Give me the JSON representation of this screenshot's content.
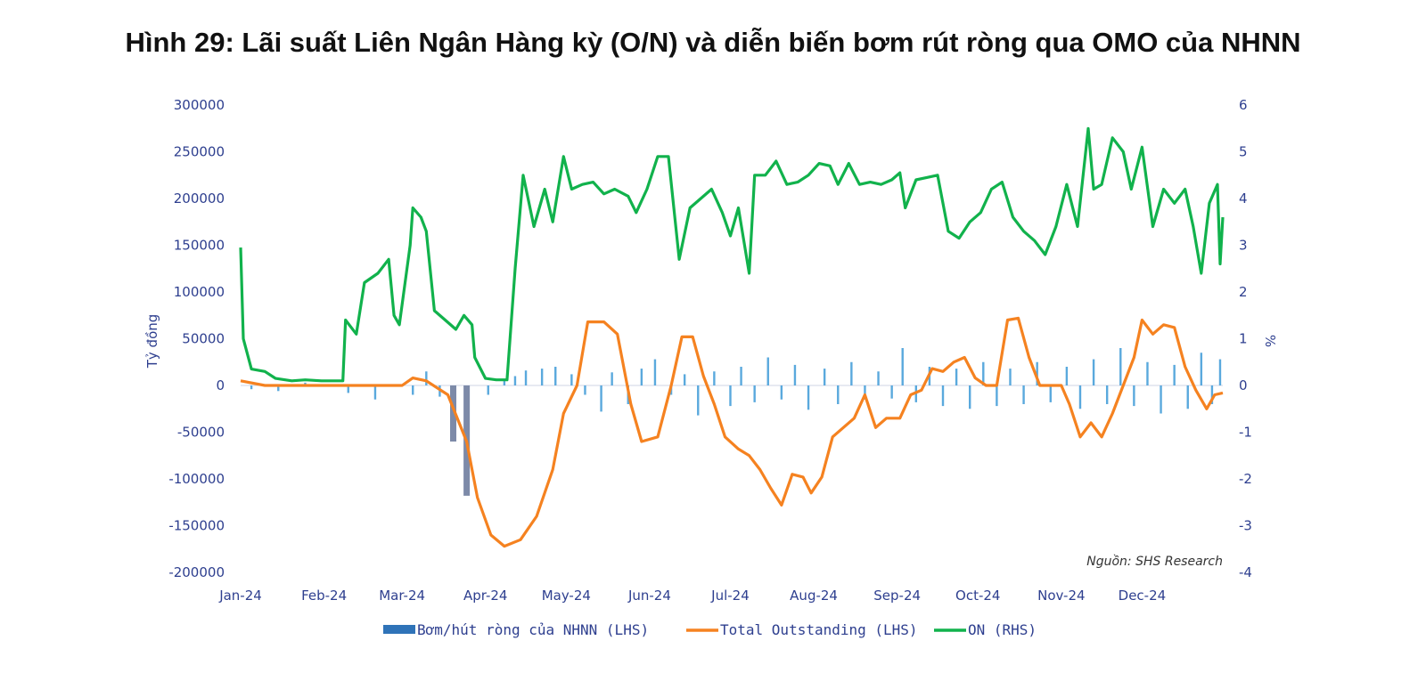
{
  "title": "Hình 29: Lãi suất Liên Ngân Hàng kỳ (O/N) và diễn biến bơm rút ròng qua OMO của NHNN",
  "chart_data": {
    "type": "line",
    "title": "Hình 29: Lãi suất Liên Ngân Hàng kỳ (O/N) và diễn biến bơm rút ròng qua OMO của NHNN",
    "ylabel": "Tỷ đồng",
    "ylabel_right": "%",
    "source_note": "Nguồn: SHS Research",
    "x_axis": {
      "type": "date",
      "range": [
        "2024-01-01",
        "2024-12-31"
      ]
    },
    "x_ticks": [
      {
        "date": "2024-01-01",
        "label": "Jan-24"
      },
      {
        "date": "2024-02-01",
        "label": "Feb-24"
      },
      {
        "date": "2024-03-01",
        "label": "Mar-24"
      },
      {
        "date": "2024-04-01",
        "label": "Apr-24"
      },
      {
        "date": "2024-05-01",
        "label": "May-24"
      },
      {
        "date": "2024-06-01",
        "label": "Jun-24"
      },
      {
        "date": "2024-07-01",
        "label": "Jul-24"
      },
      {
        "date": "2024-08-01",
        "label": "Aug-24"
      },
      {
        "date": "2024-09-01",
        "label": "Sep-24"
      },
      {
        "date": "2024-10-01",
        "label": "Oct-24"
      },
      {
        "date": "2024-11-01",
        "label": "Nov-24"
      },
      {
        "date": "2024-12-01",
        "label": "Dec-24"
      }
    ],
    "y_left": {
      "range": [
        -200000,
        300000
      ],
      "ticks": [
        "300000",
        "250000",
        "200000",
        "150000",
        "100000",
        "50000",
        "0",
        "-50000",
        "-100000",
        "-150000",
        "-200000"
      ]
    },
    "y_right": {
      "range": [
        -4,
        6
      ],
      "ticks": [
        "6",
        "5",
        "4",
        "3",
        "2",
        "1",
        "0",
        "-1",
        "-2",
        "-3",
        "-4"
      ]
    },
    "grid": false,
    "legend": {
      "placement": "bottom",
      "items": [
        {
          "label": "Bơm/hút ròng của NHNN (LHS)",
          "color": "#2f73b8",
          "kind": "bar"
        },
        {
          "label": "Total Outstanding (LHS)",
          "color": "#f58220",
          "kind": "line"
        },
        {
          "label": "ON (RHS)",
          "color": "#11b24c",
          "kind": "line"
        }
      ]
    },
    "series": [
      {
        "name": "Bơm/hút ròng của NHNN (LHS)",
        "axis": "left",
        "kind": "bar",
        "color": "#5aa9dd",
        "points": [
          [
            "2024-01-05",
            -4000
          ],
          [
            "2024-01-15",
            -6000
          ],
          [
            "2024-01-25",
            3000
          ],
          [
            "2024-02-10",
            -8000
          ],
          [
            "2024-02-20",
            -15000
          ],
          [
            "2024-03-05",
            -10000
          ],
          [
            "2024-03-10",
            15000
          ],
          [
            "2024-03-15",
            -12000
          ],
          [
            "2024-03-20",
            -60000
          ],
          [
            "2024-03-25",
            -118000
          ],
          [
            "2024-04-02",
            -10000
          ],
          [
            "2024-04-08",
            6000
          ],
          [
            "2024-04-12",
            10000
          ],
          [
            "2024-04-16",
            16000
          ],
          [
            "2024-04-22",
            18000
          ],
          [
            "2024-04-27",
            20000
          ],
          [
            "2024-05-03",
            12000
          ],
          [
            "2024-05-08",
            -10000
          ],
          [
            "2024-05-14",
            -28000
          ],
          [
            "2024-05-18",
            14000
          ],
          [
            "2024-05-24",
            -20000
          ],
          [
            "2024-05-29",
            18000
          ],
          [
            "2024-06-03",
            28000
          ],
          [
            "2024-06-09",
            -10000
          ],
          [
            "2024-06-14",
            12000
          ],
          [
            "2024-06-19",
            -32000
          ],
          [
            "2024-06-25",
            15000
          ],
          [
            "2024-07-01",
            -22000
          ],
          [
            "2024-07-05",
            20000
          ],
          [
            "2024-07-10",
            -18000
          ],
          [
            "2024-07-15",
            30000
          ],
          [
            "2024-07-20",
            -15000
          ],
          [
            "2024-07-25",
            22000
          ],
          [
            "2024-07-30",
            -26000
          ],
          [
            "2024-08-05",
            18000
          ],
          [
            "2024-08-10",
            -20000
          ],
          [
            "2024-08-15",
            25000
          ],
          [
            "2024-08-20",
            -15000
          ],
          [
            "2024-08-25",
            15000
          ],
          [
            "2024-08-30",
            -14000
          ],
          [
            "2024-09-03",
            40000
          ],
          [
            "2024-09-08",
            -18000
          ],
          [
            "2024-09-13",
            20000
          ],
          [
            "2024-09-18",
            -22000
          ],
          [
            "2024-09-23",
            18000
          ],
          [
            "2024-09-28",
            -25000
          ],
          [
            "2024-10-03",
            25000
          ],
          [
            "2024-10-08",
            -22000
          ],
          [
            "2024-10-13",
            18000
          ],
          [
            "2024-10-18",
            -20000
          ],
          [
            "2024-10-23",
            25000
          ],
          [
            "2024-10-28",
            -18000
          ],
          [
            "2024-11-03",
            20000
          ],
          [
            "2024-11-08",
            -25000
          ],
          [
            "2024-11-13",
            28000
          ],
          [
            "2024-11-18",
            -20000
          ],
          [
            "2024-11-23",
            40000
          ],
          [
            "2024-11-28",
            -22000
          ],
          [
            "2024-12-03",
            25000
          ],
          [
            "2024-12-08",
            -30000
          ],
          [
            "2024-12-13",
            22000
          ],
          [
            "2024-12-18",
            -25000
          ],
          [
            "2024-12-23",
            35000
          ],
          [
            "2024-12-27",
            -20000
          ],
          [
            "2024-12-30",
            28000
          ]
        ]
      },
      {
        "name": "Total Outstanding (LHS)",
        "axis": "left",
        "kind": "line",
        "color": "#f58220",
        "points": [
          [
            "2024-01-01",
            5000
          ],
          [
            "2024-01-10",
            0
          ],
          [
            "2024-02-01",
            0
          ],
          [
            "2024-03-01",
            0
          ],
          [
            "2024-03-05",
            8000
          ],
          [
            "2024-03-10",
            5000
          ],
          [
            "2024-03-18",
            -10000
          ],
          [
            "2024-03-25",
            -60000
          ],
          [
            "2024-03-29",
            -120000
          ],
          [
            "2024-04-03",
            -160000
          ],
          [
            "2024-04-08",
            -172000
          ],
          [
            "2024-04-14",
            -165000
          ],
          [
            "2024-04-20",
            -140000
          ],
          [
            "2024-04-26",
            -90000
          ],
          [
            "2024-04-30",
            -30000
          ],
          [
            "2024-05-05",
            0
          ],
          [
            "2024-05-09",
            68000
          ],
          [
            "2024-05-15",
            68000
          ],
          [
            "2024-05-20",
            55000
          ],
          [
            "2024-05-25",
            -20000
          ],
          [
            "2024-05-29",
            -60000
          ],
          [
            "2024-06-04",
            -55000
          ],
          [
            "2024-06-09",
            0
          ],
          [
            "2024-06-13",
            52000
          ],
          [
            "2024-06-17",
            52000
          ],
          [
            "2024-06-21",
            10000
          ],
          [
            "2024-06-25",
            -20000
          ],
          [
            "2024-06-29",
            -55000
          ],
          [
            "2024-07-04",
            -68000
          ],
          [
            "2024-07-08",
            -75000
          ],
          [
            "2024-07-12",
            -90000
          ],
          [
            "2024-07-16",
            -110000
          ],
          [
            "2024-07-20",
            -128000
          ],
          [
            "2024-07-24",
            -95000
          ],
          [
            "2024-07-28",
            -98000
          ],
          [
            "2024-07-31",
            -115000
          ],
          [
            "2024-08-04",
            -98000
          ],
          [
            "2024-08-08",
            -55000
          ],
          [
            "2024-08-12",
            -45000
          ],
          [
            "2024-08-16",
            -35000
          ],
          [
            "2024-08-20",
            -10000
          ],
          [
            "2024-08-24",
            -45000
          ],
          [
            "2024-08-28",
            -35000
          ],
          [
            "2024-09-02",
            -35000
          ],
          [
            "2024-09-06",
            -10000
          ],
          [
            "2024-09-10",
            -5000
          ],
          [
            "2024-09-14",
            18000
          ],
          [
            "2024-09-18",
            15000
          ],
          [
            "2024-09-22",
            25000
          ],
          [
            "2024-09-26",
            30000
          ],
          [
            "2024-09-30",
            8000
          ],
          [
            "2024-10-04",
            0
          ],
          [
            "2024-10-08",
            0
          ],
          [
            "2024-10-12",
            70000
          ],
          [
            "2024-10-16",
            72000
          ],
          [
            "2024-10-20",
            30000
          ],
          [
            "2024-10-24",
            0
          ],
          [
            "2024-10-28",
            0
          ],
          [
            "2024-11-01",
            0
          ],
          [
            "2024-11-04",
            -20000
          ],
          [
            "2024-11-08",
            -55000
          ],
          [
            "2024-11-12",
            -40000
          ],
          [
            "2024-11-16",
            -55000
          ],
          [
            "2024-11-20",
            -30000
          ],
          [
            "2024-11-24",
            0
          ],
          [
            "2024-11-28",
            30000
          ],
          [
            "2024-12-01",
            70000
          ],
          [
            "2024-12-05",
            55000
          ],
          [
            "2024-12-09",
            65000
          ],
          [
            "2024-12-13",
            62000
          ],
          [
            "2024-12-17",
            20000
          ],
          [
            "2024-12-21",
            -5000
          ],
          [
            "2024-12-25",
            -25000
          ],
          [
            "2024-12-28",
            -10000
          ],
          [
            "2024-12-31",
            -8000
          ]
        ]
      },
      {
        "name": "ON (RHS)",
        "axis": "right",
        "kind": "line",
        "color": "#11b24c",
        "points": [
          [
            "2024-01-01",
            2.95
          ],
          [
            "2024-01-02",
            1.0
          ],
          [
            "2024-01-05",
            0.35
          ],
          [
            "2024-01-10",
            0.3
          ],
          [
            "2024-01-14",
            0.15
          ],
          [
            "2024-01-20",
            0.1
          ],
          [
            "2024-01-25",
            0.12
          ],
          [
            "2024-01-31",
            0.1
          ],
          [
            "2024-02-05",
            0.1
          ],
          [
            "2024-02-08",
            0.1
          ],
          [
            "2024-02-09",
            1.4
          ],
          [
            "2024-02-13",
            1.1
          ],
          [
            "2024-02-16",
            2.2
          ],
          [
            "2024-02-21",
            2.4
          ],
          [
            "2024-02-25",
            2.7
          ],
          [
            "2024-02-27",
            1.5
          ],
          [
            "2024-02-29",
            1.3
          ],
          [
            "2024-03-04",
            3.0
          ],
          [
            "2024-03-05",
            3.8
          ],
          [
            "2024-03-08",
            3.6
          ],
          [
            "2024-03-10",
            3.3
          ],
          [
            "2024-03-13",
            1.6
          ],
          [
            "2024-03-17",
            1.4
          ],
          [
            "2024-03-21",
            1.2
          ],
          [
            "2024-03-24",
            1.5
          ],
          [
            "2024-03-27",
            1.3
          ],
          [
            "2024-03-28",
            0.6
          ],
          [
            "2024-04-01",
            0.15
          ],
          [
            "2024-04-05",
            0.12
          ],
          [
            "2024-04-09",
            0.12
          ],
          [
            "2024-04-12",
            2.5
          ],
          [
            "2024-04-15",
            4.5
          ],
          [
            "2024-04-19",
            3.4
          ],
          [
            "2024-04-23",
            4.2
          ],
          [
            "2024-04-26",
            3.5
          ],
          [
            "2024-04-30",
            4.9
          ],
          [
            "2024-05-03",
            4.2
          ],
          [
            "2024-05-07",
            4.3
          ],
          [
            "2024-05-11",
            4.35
          ],
          [
            "2024-05-15",
            4.1
          ],
          [
            "2024-05-19",
            4.2
          ],
          [
            "2024-05-24",
            4.05
          ],
          [
            "2024-05-27",
            3.7
          ],
          [
            "2024-05-31",
            4.2
          ],
          [
            "2024-06-04",
            4.9
          ],
          [
            "2024-06-08",
            4.9
          ],
          [
            "2024-06-12",
            2.7
          ],
          [
            "2024-06-16",
            3.8
          ],
          [
            "2024-06-20",
            4.0
          ],
          [
            "2024-06-24",
            4.2
          ],
          [
            "2024-06-28",
            3.7
          ],
          [
            "2024-07-01",
            3.2
          ],
          [
            "2024-07-04",
            3.8
          ],
          [
            "2024-07-08",
            2.4
          ],
          [
            "2024-07-10",
            4.5
          ],
          [
            "2024-07-14",
            4.5
          ],
          [
            "2024-07-18",
            4.8
          ],
          [
            "2024-07-22",
            4.3
          ],
          [
            "2024-07-26",
            4.35
          ],
          [
            "2024-07-30",
            4.5
          ],
          [
            "2024-08-03",
            4.75
          ],
          [
            "2024-08-07",
            4.7
          ],
          [
            "2024-08-10",
            4.3
          ],
          [
            "2024-08-14",
            4.75
          ],
          [
            "2024-08-18",
            4.3
          ],
          [
            "2024-08-22",
            4.35
          ],
          [
            "2024-08-26",
            4.3
          ],
          [
            "2024-08-30",
            4.4
          ],
          [
            "2024-09-02",
            4.55
          ],
          [
            "2024-09-04",
            3.8
          ],
          [
            "2024-09-08",
            4.4
          ],
          [
            "2024-09-12",
            4.45
          ],
          [
            "2024-09-16",
            4.5
          ],
          [
            "2024-09-20",
            3.3
          ],
          [
            "2024-09-24",
            3.15
          ],
          [
            "2024-09-28",
            3.5
          ],
          [
            "2024-10-02",
            3.7
          ],
          [
            "2024-10-06",
            4.2
          ],
          [
            "2024-10-10",
            4.35
          ],
          [
            "2024-10-14",
            3.6
          ],
          [
            "2024-10-18",
            3.3
          ],
          [
            "2024-10-22",
            3.1
          ],
          [
            "2024-10-26",
            2.8
          ],
          [
            "2024-10-30",
            3.4
          ],
          [
            "2024-11-03",
            4.3
          ],
          [
            "2024-11-07",
            3.4
          ],
          [
            "2024-11-11",
            5.5
          ],
          [
            "2024-11-13",
            4.2
          ],
          [
            "2024-11-16",
            4.3
          ],
          [
            "2024-11-20",
            5.3
          ],
          [
            "2024-11-24",
            5.0
          ],
          [
            "2024-11-27",
            4.2
          ],
          [
            "2024-12-01",
            5.1
          ],
          [
            "2024-12-05",
            3.4
          ],
          [
            "2024-12-09",
            4.2
          ],
          [
            "2024-12-13",
            3.9
          ],
          [
            "2024-12-17",
            4.2
          ],
          [
            "2024-12-20",
            3.4
          ],
          [
            "2024-12-23",
            2.4
          ],
          [
            "2024-12-26",
            3.9
          ],
          [
            "2024-12-29",
            4.3
          ],
          [
            "2024-12-30",
            2.6
          ],
          [
            "2024-12-31",
            3.6
          ]
        ]
      }
    ]
  }
}
